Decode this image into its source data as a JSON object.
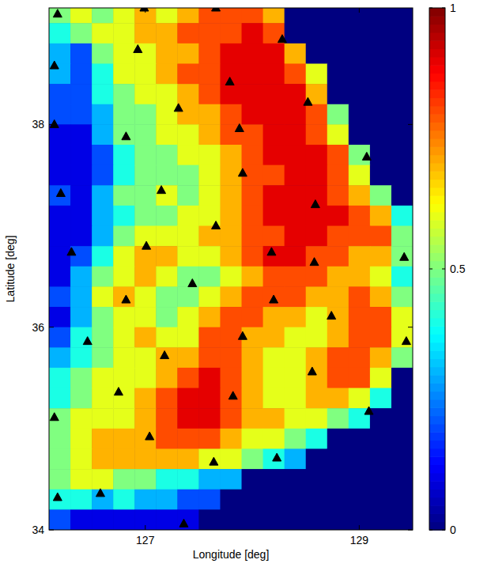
{
  "chart_data": {
    "type": "heatmap",
    "x_label": "Longitude [deg]",
    "y_label": "Latitude [deg]",
    "xlim": [
      126.1,
      129.5
    ],
    "ylim": [
      34,
      39.15
    ],
    "xticks": [
      127,
      129
    ],
    "yticks": [
      34,
      36,
      38
    ],
    "colorbar": {
      "lim": [
        0,
        1
      ],
      "ticks": [
        0,
        0.5,
        1
      ]
    },
    "x": [
      126.2,
      126.4,
      126.6,
      126.8,
      127.0,
      127.2,
      127.4,
      127.6,
      127.8,
      128.0,
      128.2,
      128.4,
      128.6,
      128.8,
      129.0,
      129.2,
      129.4
    ],
    "y": [
      39.1,
      38.9,
      38.7,
      38.5,
      38.3,
      38.1,
      37.9,
      37.7,
      37.5,
      37.3,
      37.1,
      36.9,
      36.7,
      36.5,
      36.3,
      36.1,
      35.9,
      35.7,
      35.5,
      35.3,
      35.1,
      34.9,
      34.7,
      34.5,
      34.3,
      34.1
    ],
    "cells": [
      [
        0.5,
        0.6,
        0.5,
        0.6,
        0.7,
        0.6,
        0.7,
        0.8,
        0.8,
        0.8,
        0.7,
        0,
        0,
        0,
        0,
        0,
        0
      ],
      [
        0.4,
        0.5,
        0.6,
        0.6,
        0.7,
        0.7,
        0.8,
        0.8,
        0.8,
        0.9,
        0.8,
        0,
        0,
        0,
        0,
        0,
        0
      ],
      [
        0.3,
        0.2,
        0.5,
        0.6,
        0.6,
        0.7,
        0.7,
        0.8,
        0.9,
        0.9,
        0.9,
        0.7,
        0,
        0,
        0,
        0,
        0
      ],
      [
        0.3,
        0.2,
        0.4,
        0.6,
        0.6,
        0.7,
        0.8,
        0.8,
        0.9,
        0.9,
        0.9,
        0.8,
        0.6,
        0,
        0,
        0,
        0
      ],
      [
        0.2,
        0.2,
        0.4,
        0.5,
        0.6,
        0.6,
        0.7,
        0.8,
        0.9,
        0.9,
        0.9,
        0.9,
        0.7,
        0,
        0,
        0,
        0
      ],
      [
        0.2,
        0.2,
        0.3,
        0.5,
        0.5,
        0.6,
        0.7,
        0.7,
        0.8,
        0.9,
        0.9,
        0.9,
        0.8,
        0.5,
        0,
        0,
        0
      ],
      [
        0.1,
        0.1,
        0.3,
        0.5,
        0.5,
        0.6,
        0.6,
        0.7,
        0.8,
        0.8,
        0.9,
        0.9,
        0.8,
        0.6,
        0,
        0,
        0
      ],
      [
        0.1,
        0.1,
        0.2,
        0.4,
        0.5,
        0.5,
        0.6,
        0.6,
        0.7,
        0.8,
        0.9,
        0.9,
        0.9,
        0.8,
        0.5,
        0,
        0
      ],
      [
        0.1,
        0.1,
        0.2,
        0.4,
        0.5,
        0.5,
        0.5,
        0.6,
        0.7,
        0.8,
        0.8,
        0.9,
        0.9,
        0.8,
        0.6,
        0,
        0
      ],
      [
        0.2,
        0.1,
        0.3,
        0.5,
        0.5,
        0.6,
        0.5,
        0.6,
        0.7,
        0.8,
        0.9,
        0.9,
        0.9,
        0.8,
        0.7,
        0.5,
        0
      ],
      [
        0.1,
        0.1,
        0.3,
        0.4,
        0.5,
        0.5,
        0.6,
        0.6,
        0.7,
        0.8,
        0.9,
        0.9,
        0.9,
        0.9,
        0.8,
        0.7,
        0.4
      ],
      [
        0.1,
        0.1,
        0.3,
        0.5,
        0.6,
        0.6,
        0.6,
        0.7,
        0.7,
        0.8,
        0.8,
        0.9,
        0.9,
        0.8,
        0.8,
        0.8,
        0.5
      ],
      [
        0.1,
        0.2,
        0.4,
        0.6,
        0.7,
        0.7,
        0.6,
        0.6,
        0.7,
        0.8,
        0.9,
        0.9,
        0.8,
        0.8,
        0.7,
        0.7,
        0.5
      ],
      [
        0.1,
        0.3,
        0.5,
        0.6,
        0.7,
        0.6,
        0.5,
        0.5,
        0.6,
        0.7,
        0.8,
        0.8,
        0.8,
        0.7,
        0.7,
        0.6,
        0.4
      ],
      [
        0.2,
        0.3,
        0.6,
        0.7,
        0.6,
        0.5,
        0.5,
        0.6,
        0.7,
        0.8,
        0.8,
        0.8,
        0.7,
        0.7,
        0.8,
        0.7,
        0.5
      ],
      [
        0.1,
        0.3,
        0.5,
        0.6,
        0.6,
        0.5,
        0.6,
        0.7,
        0.8,
        0.8,
        0.7,
        0.7,
        0.6,
        0.7,
        0.8,
        0.8,
        0.6
      ],
      [
        0.2,
        0.4,
        0.5,
        0.6,
        0.7,
        0.6,
        0.6,
        0.8,
        0.8,
        0.7,
        0.7,
        0.6,
        0.6,
        0.7,
        0.8,
        0.8,
        0.6
      ],
      [
        0.3,
        0.4,
        0.5,
        0.6,
        0.6,
        0.7,
        0.7,
        0.8,
        0.8,
        0.7,
        0.6,
        0.6,
        0.7,
        0.8,
        0.8,
        0.7,
        0.5
      ],
      [
        0.4,
        0.5,
        0.6,
        0.6,
        0.6,
        0.7,
        0.8,
        0.9,
        0.8,
        0.7,
        0.6,
        0.6,
        0.7,
        0.8,
        0.8,
        0.6,
        0
      ],
      [
        0.4,
        0.5,
        0.6,
        0.6,
        0.7,
        0.8,
        0.9,
        0.9,
        0.8,
        0.7,
        0.6,
        0.6,
        0.7,
        0.7,
        0.6,
        0.4,
        0
      ],
      [
        0.5,
        0.6,
        0.6,
        0.6,
        0.7,
        0.8,
        0.9,
        0.9,
        0.8,
        0.7,
        0.7,
        0.6,
        0.6,
        0.5,
        0.4,
        0,
        0
      ],
      [
        0.5,
        0.6,
        0.7,
        0.7,
        0.7,
        0.8,
        0.8,
        0.8,
        0.7,
        0.6,
        0.6,
        0.5,
        0.4,
        0,
        0,
        0,
        0
      ],
      [
        0.5,
        0.6,
        0.7,
        0.7,
        0.7,
        0.7,
        0.7,
        0.6,
        0.6,
        0.5,
        0.4,
        0.3,
        0,
        0,
        0,
        0,
        0
      ],
      [
        0.5,
        0.6,
        0.6,
        0.5,
        0.5,
        0.4,
        0.4,
        0.3,
        0.3,
        0,
        0,
        0,
        0,
        0,
        0,
        0,
        0
      ],
      [
        0.4,
        0.4,
        0.3,
        0.4,
        0.3,
        0.3,
        0.2,
        0.2,
        0,
        0,
        0,
        0,
        0,
        0,
        0,
        0,
        0
      ],
      [
        0.2,
        0.1,
        0.1,
        0.1,
        0.1,
        0.1,
        0.1,
        0,
        0,
        0,
        0,
        0,
        0,
        0,
        0,
        0,
        0
      ]
    ],
    "series": [
      {
        "type": "scatter",
        "marker": "triangle",
        "color": "#000000",
        "x": [
          126.18,
          126.99,
          127.66,
          128.28,
          126.93,
          126.15,
          127.79,
          128.52,
          127.31,
          127.88,
          126.15,
          126.82,
          129.07,
          127.91,
          126.21,
          127.15,
          128.59,
          127.66,
          126.31,
          127.01,
          128.18,
          129.42,
          128.58,
          127.44,
          126.82,
          128.2,
          128.74,
          126.46,
          127.91,
          129.44,
          127.18,
          128.56,
          126.75,
          127.82,
          126.15,
          129.09,
          127.04,
          127.64,
          128.23,
          126.58,
          126.18,
          127.36
        ],
        "values": [
          39.09,
          39.15,
          39.15,
          38.84,
          38.74,
          38.58,
          38.42,
          38.22,
          38.16,
          37.96,
          38.0,
          37.88,
          37.68,
          37.52,
          37.32,
          37.35,
          37.21,
          37.0,
          36.74,
          36.8,
          36.74,
          36.69,
          36.64,
          36.43,
          36.27,
          36.27,
          36.11,
          35.86,
          35.91,
          35.86,
          35.72,
          35.56,
          35.36,
          35.32,
          35.11,
          35.17,
          34.92,
          34.67,
          34.71,
          34.36,
          34.32,
          34.06
        ]
      }
    ]
  }
}
